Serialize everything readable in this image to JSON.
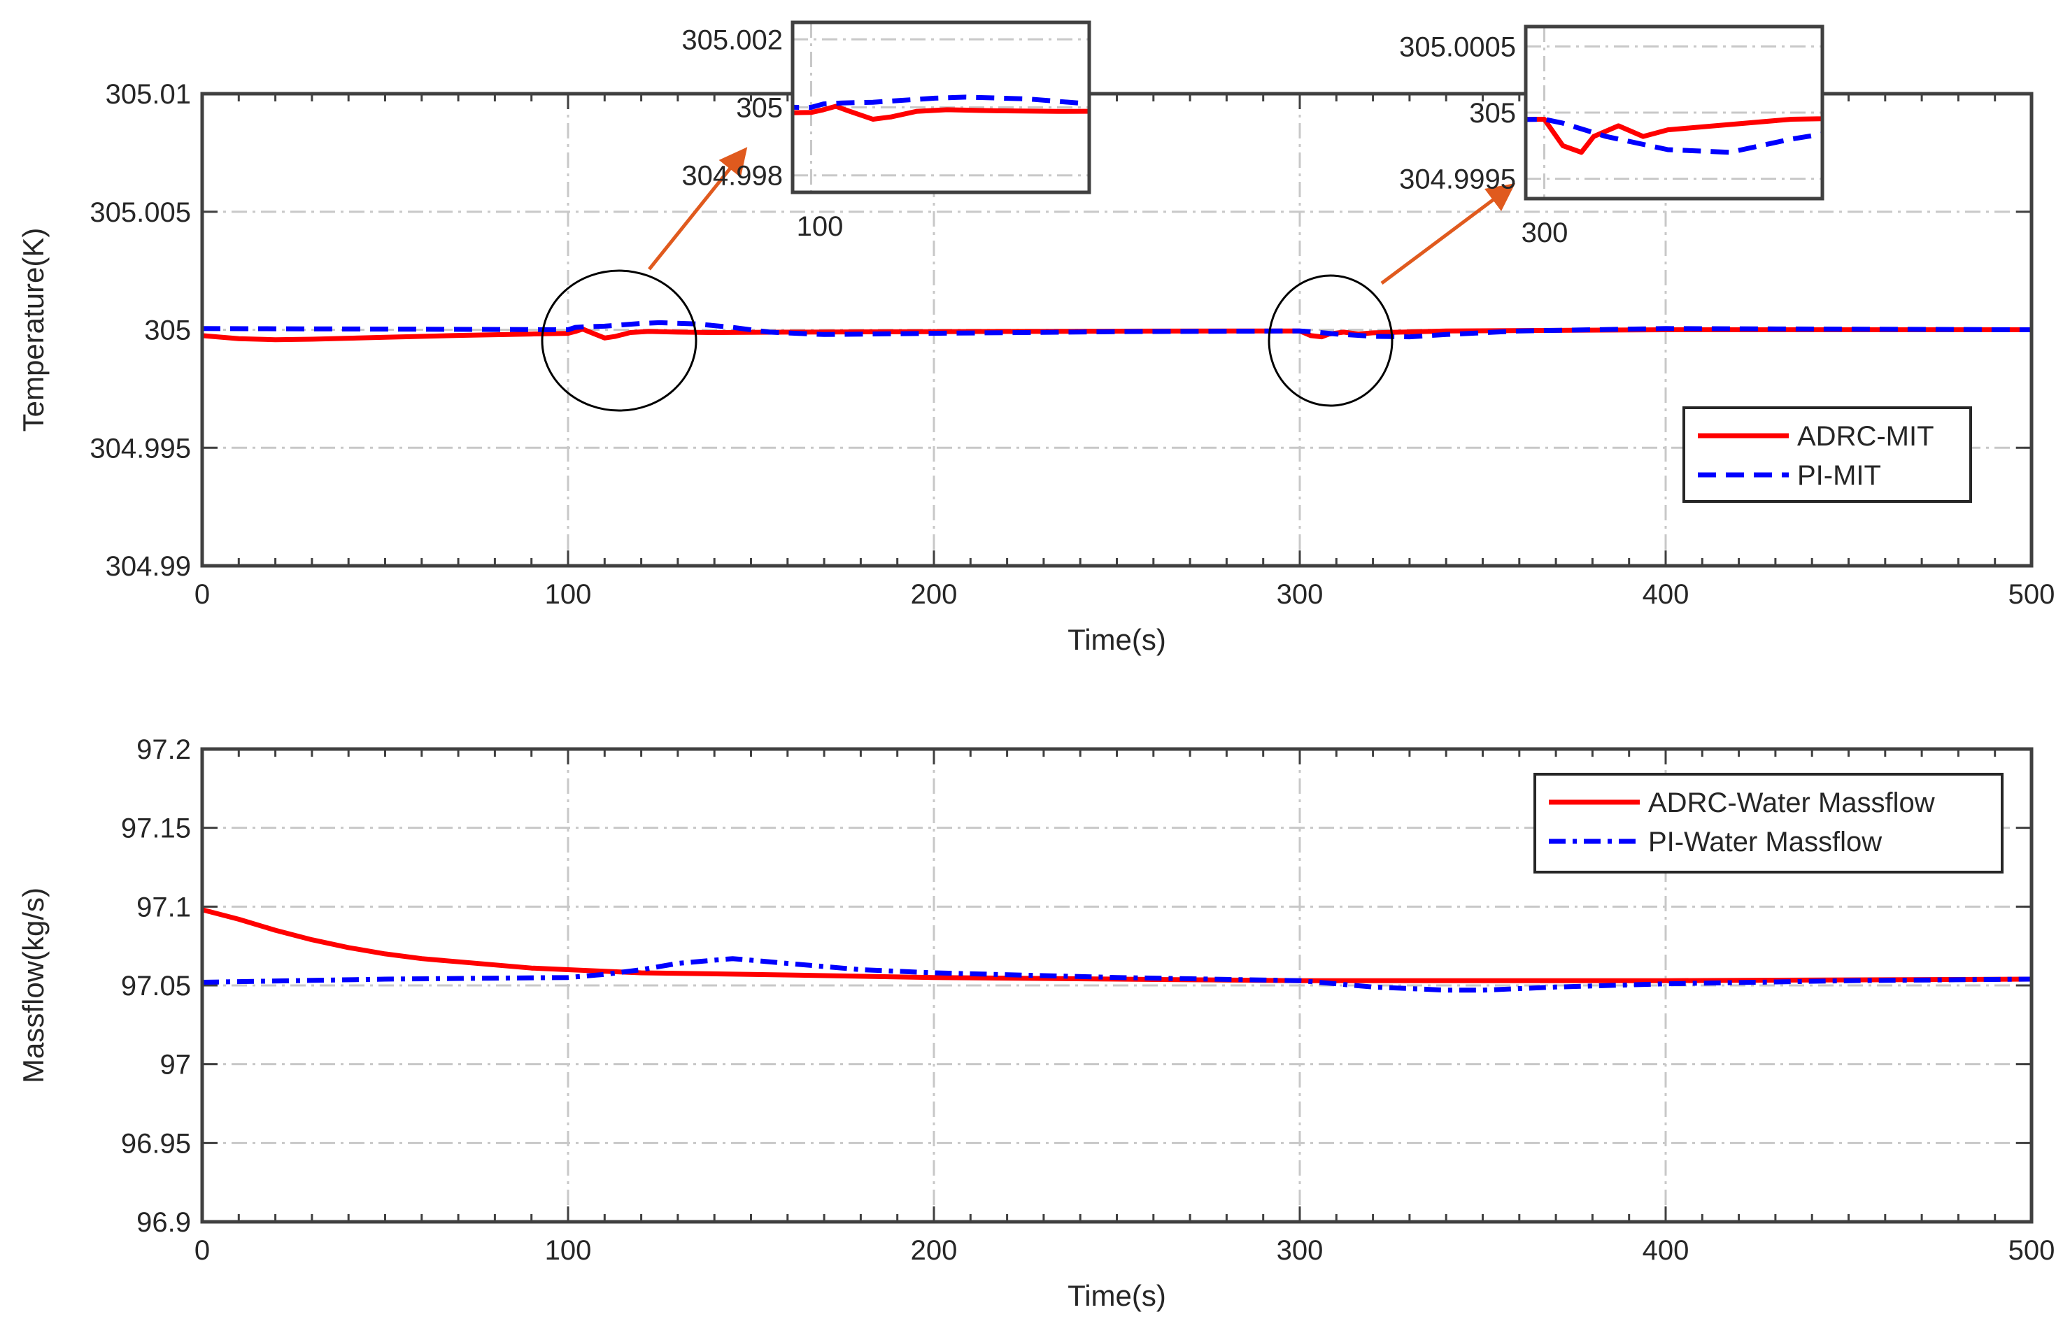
{
  "colors": {
    "adrc": "#ff0000",
    "pi": "#0000ff",
    "arrow": "#e05a1e",
    "grid": "#c8c8c8",
    "axis": "#404040"
  },
  "chart_data": [
    {
      "type": "line",
      "id": "temperature",
      "xlabel": "Time(s)",
      "ylabel": "Temperature(K)",
      "xlim": [
        0,
        500
      ],
      "ylim": [
        304.99,
        305.01
      ],
      "xticks": [
        0,
        100,
        200,
        300,
        400,
        500
      ],
      "xtick_labels": [
        "0",
        "100",
        "200",
        "300",
        "400",
        "500"
      ],
      "yticks": [
        304.99,
        304.995,
        305,
        305.005,
        305.01
      ],
      "ytick_labels": [
        "304.99",
        "304.995",
        "305",
        "305.005",
        "305.01"
      ],
      "grid": true,
      "legend_position": "middle-right",
      "series": [
        {
          "name": "ADRC-MIT",
          "style": "solid",
          "color": "#ff0000",
          "x": [
            0,
            10,
            20,
            30,
            50,
            70,
            90,
            100,
            102,
            104,
            106,
            110,
            113,
            117,
            122,
            130,
            140,
            160,
            200,
            250,
            300,
            303,
            306,
            308,
            312,
            316,
            320,
            340,
            400,
            500
          ],
          "y": [
            304.99975,
            304.99962,
            304.99958,
            304.9996,
            304.99968,
            304.99976,
            304.99982,
            304.99985,
            304.99993,
            305.00003,
            304.9999,
            304.99965,
            304.99972,
            304.99988,
            304.99993,
            304.9999,
            304.99988,
            304.9999,
            304.99992,
            304.99994,
            304.99995,
            304.99975,
            304.9997,
            304.99982,
            304.9999,
            304.99982,
            304.99987,
            304.99995,
            305.0,
            305.0
          ]
        },
        {
          "name": "PI-MIT",
          "style": "dashed",
          "color": "#0000ff",
          "x": [
            0,
            50,
            100,
            102,
            105,
            110,
            120,
            125,
            135,
            145,
            155,
            170,
            200,
            250,
            300,
            303,
            310,
            320,
            330,
            340,
            360,
            400,
            500
          ],
          "y": [
            305.00005,
            305.00003,
            305.0,
            305.0001,
            305.00013,
            305.00015,
            305.00027,
            305.0003,
            305.00025,
            305.0001,
            304.9999,
            304.9998,
            304.99985,
            304.99992,
            304.99995,
            304.99992,
            304.99982,
            304.99972,
            304.9997,
            304.9998,
            304.99995,
            305.00005,
            305.0
          ]
        }
      ],
      "insets": [
        {
          "xlim": [
            97,
            145
          ],
          "ylim": [
            304.9975,
            305.0025
          ],
          "yticks": [
            304.998,
            305,
            305.002
          ],
          "ytick_labels": [
            "304.998",
            "305",
            "305.002"
          ],
          "xticks": [
            100
          ],
          "xtick_labels": [
            "100"
          ]
        },
        {
          "xlim": [
            297,
            345
          ],
          "ylim": [
            304.99935,
            305.00065
          ],
          "yticks": [
            304.9995,
            305,
            305.0005
          ],
          "ytick_labels": [
            "304.9995",
            "305",
            "305.0005"
          ],
          "xticks": [
            300
          ],
          "xtick_labels": [
            "300"
          ]
        }
      ]
    },
    {
      "type": "line",
      "id": "massflow",
      "xlabel": "Time(s)",
      "ylabel": "Massflow(kg/s)",
      "xlim": [
        0,
        500
      ],
      "ylim": [
        96.9,
        97.2
      ],
      "xticks": [
        0,
        100,
        200,
        300,
        400,
        500
      ],
      "xtick_labels": [
        "0",
        "100",
        "200",
        "300",
        "400",
        "500"
      ],
      "yticks": [
        96.9,
        96.95,
        97,
        97.05,
        97.1,
        97.15,
        97.2
      ],
      "ytick_labels": [
        "96.9",
        "96.95",
        "97",
        "97.05",
        "97.1",
        "97.15",
        "97.2"
      ],
      "grid": true,
      "legend_position": "top-right",
      "series": [
        {
          "name": "ADRC-Water Massflow",
          "style": "solid",
          "color": "#ff0000",
          "x": [
            0,
            10,
            20,
            30,
            40,
            50,
            60,
            70,
            80,
            90,
            100,
            120,
            150,
            200,
            250,
            300,
            350,
            400,
            500
          ],
          "y": [
            97.098,
            97.092,
            97.085,
            97.079,
            97.074,
            97.07,
            97.067,
            97.065,
            97.063,
            97.061,
            97.06,
            97.058,
            97.057,
            97.055,
            97.054,
            97.053,
            97.053,
            97.053,
            97.054
          ]
        },
        {
          "name": "PI-Water Massflow",
          "style": "dashdot",
          "color": "#0000ff",
          "x": [
            0,
            50,
            100,
            110,
            120,
            130,
            140,
            145,
            150,
            160,
            180,
            200,
            250,
            300,
            310,
            320,
            330,
            340,
            350,
            370,
            400,
            450,
            500
          ],
          "y": [
            97.052,
            97.054,
            97.055,
            97.057,
            97.06,
            97.064,
            97.066,
            97.067,
            97.066,
            97.064,
            97.06,
            97.058,
            97.055,
            97.053,
            97.051,
            97.049,
            97.048,
            97.047,
            97.047,
            97.049,
            97.051,
            97.053,
            97.054
          ]
        }
      ]
    }
  ]
}
